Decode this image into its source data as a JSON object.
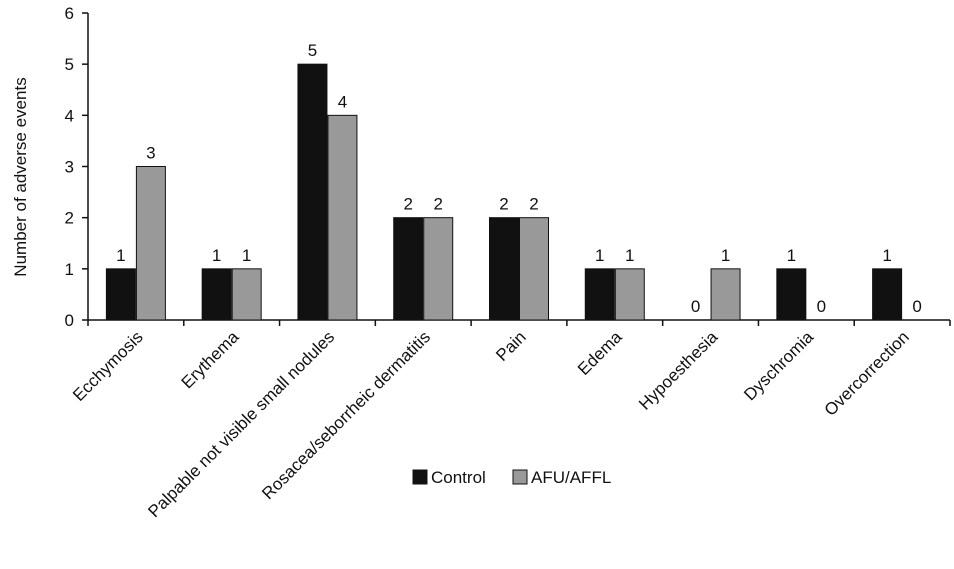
{
  "chart_data": {
    "type": "bar",
    "ylabel": "Number of adverse events",
    "ylim": [
      0,
      6
    ],
    "yticks": [
      0,
      1,
      2,
      3,
      4,
      5,
      6
    ],
    "categories": [
      "Ecchymosis",
      "Erythema",
      "Palpable not visible small nodules",
      "Rosacea/seborrheic dermatitis",
      "Pain",
      "Edema",
      "Hypoesthesia",
      "Dyschromia",
      "Overcorrection"
    ],
    "series": [
      {
        "name": "Control",
        "values": [
          1,
          1,
          5,
          2,
          2,
          1,
          0,
          1,
          1
        ],
        "color": "#111111"
      },
      {
        "name": "AFU/AFFL",
        "values": [
          3,
          1,
          4,
          2,
          2,
          1,
          1,
          0,
          0
        ],
        "color": "#999999"
      }
    ],
    "legend_position": "bottom-center",
    "grid": false
  }
}
